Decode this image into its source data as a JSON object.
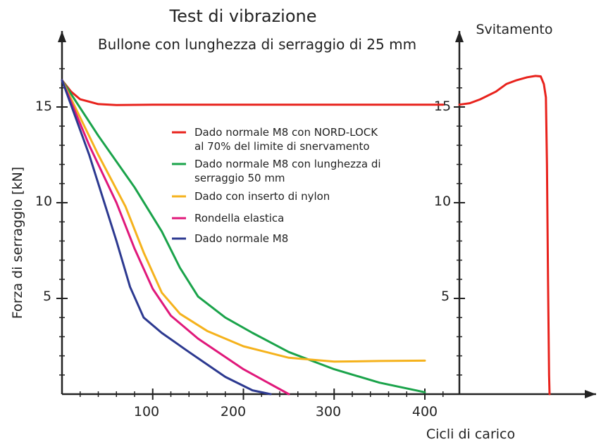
{
  "chart_data": [
    {
      "type": "line",
      "title": "Test di vibrazione",
      "subtitle": "Bullone con lunghezza di serraggio di 25 mm",
      "xlabel": "Cicli di carico",
      "ylabel": "Forza di serraggio  [kN]",
      "xlim": [
        0,
        420
      ],
      "ylim": [
        0,
        17.5
      ],
      "x_ticks": [
        "100",
        "200",
        "300",
        "400"
      ],
      "y_ticks": [
        "5",
        "10",
        "15"
      ],
      "grid": false,
      "legend_position": "center",
      "series": [
        {
          "name": "Dado normale M8 con NORD-LOCK\nal 70% del limite di snervamento",
          "color": "#e8221c",
          "points": [
            [
              0,
              16.4
            ],
            [
              10,
              15.8
            ],
            [
              20,
              15.4
            ],
            [
              40,
              15.15
            ],
            [
              60,
              15.1
            ],
            [
              100,
              15.12
            ],
            [
              200,
              15.12
            ],
            [
              300,
              15.12
            ],
            [
              420,
              15.12
            ]
          ]
        },
        {
          "name": "Dado normale M8 con lunghezza di\nserraggio 50 mm",
          "color": "#1aa34a",
          "points": [
            [
              0,
              16.4
            ],
            [
              40,
              13.5
            ],
            [
              80,
              10.8
            ],
            [
              110,
              8.5
            ],
            [
              130,
              6.6
            ],
            [
              150,
              5.1
            ],
            [
              180,
              4.0
            ],
            [
              210,
              3.2
            ],
            [
              250,
              2.2
            ],
            [
              300,
              1.3
            ],
            [
              350,
              0.6
            ],
            [
              400,
              0.1
            ]
          ]
        },
        {
          "name": "Dado con inserto di nylon",
          "color": "#f5b21c",
          "points": [
            [
              0,
              16.4
            ],
            [
              40,
              12.5
            ],
            [
              70,
              9.8
            ],
            [
              90,
              7.4
            ],
            [
              110,
              5.3
            ],
            [
              130,
              4.2
            ],
            [
              160,
              3.3
            ],
            [
              200,
              2.5
            ],
            [
              250,
              1.9
            ],
            [
              300,
              1.7
            ],
            [
              350,
              1.73
            ],
            [
              400,
              1.75
            ]
          ]
        },
        {
          "name": "Rondella elastica",
          "color": "#e0187a",
          "points": [
            [
              0,
              16.4
            ],
            [
              30,
              13.0
            ],
            [
              60,
              10.0
            ],
            [
              80,
              7.6
            ],
            [
              100,
              5.5
            ],
            [
              120,
              4.1
            ],
            [
              150,
              2.9
            ],
            [
              200,
              1.3
            ],
            [
              250,
              0.0
            ]
          ]
        },
        {
          "name": "Dado normale M8",
          "color": "#2c3990",
          "points": [
            [
              0,
              16.4
            ],
            [
              30,
              12.5
            ],
            [
              60,
              8.0
            ],
            [
              75,
              5.6
            ],
            [
              90,
              4.0
            ],
            [
              110,
              3.2
            ],
            [
              140,
              2.2
            ],
            [
              180,
              0.9
            ],
            [
              210,
              0.2
            ],
            [
              230,
              0.0
            ]
          ]
        }
      ]
    },
    {
      "type": "line",
      "title": "Svitamento",
      "xlim": [
        0,
        1
      ],
      "ylim": [
        0,
        17.5
      ],
      "y_ticks": [
        "5",
        "10",
        "15"
      ],
      "series": [
        {
          "color": "#e8221c",
          "points": [
            [
              0.0,
              15.12
            ],
            [
              0.1,
              15.2
            ],
            [
              0.2,
              15.4
            ],
            [
              0.35,
              15.8
            ],
            [
              0.45,
              16.2
            ],
            [
              0.55,
              16.4
            ],
            [
              0.65,
              16.55
            ],
            [
              0.73,
              16.62
            ],
            [
              0.78,
              16.6
            ],
            [
              0.81,
              16.2
            ],
            [
              0.83,
              15.5
            ],
            [
              0.84,
              12.0
            ],
            [
              0.85,
              6.0
            ],
            [
              0.86,
              1.0
            ],
            [
              0.865,
              0.0
            ]
          ]
        }
      ]
    }
  ]
}
